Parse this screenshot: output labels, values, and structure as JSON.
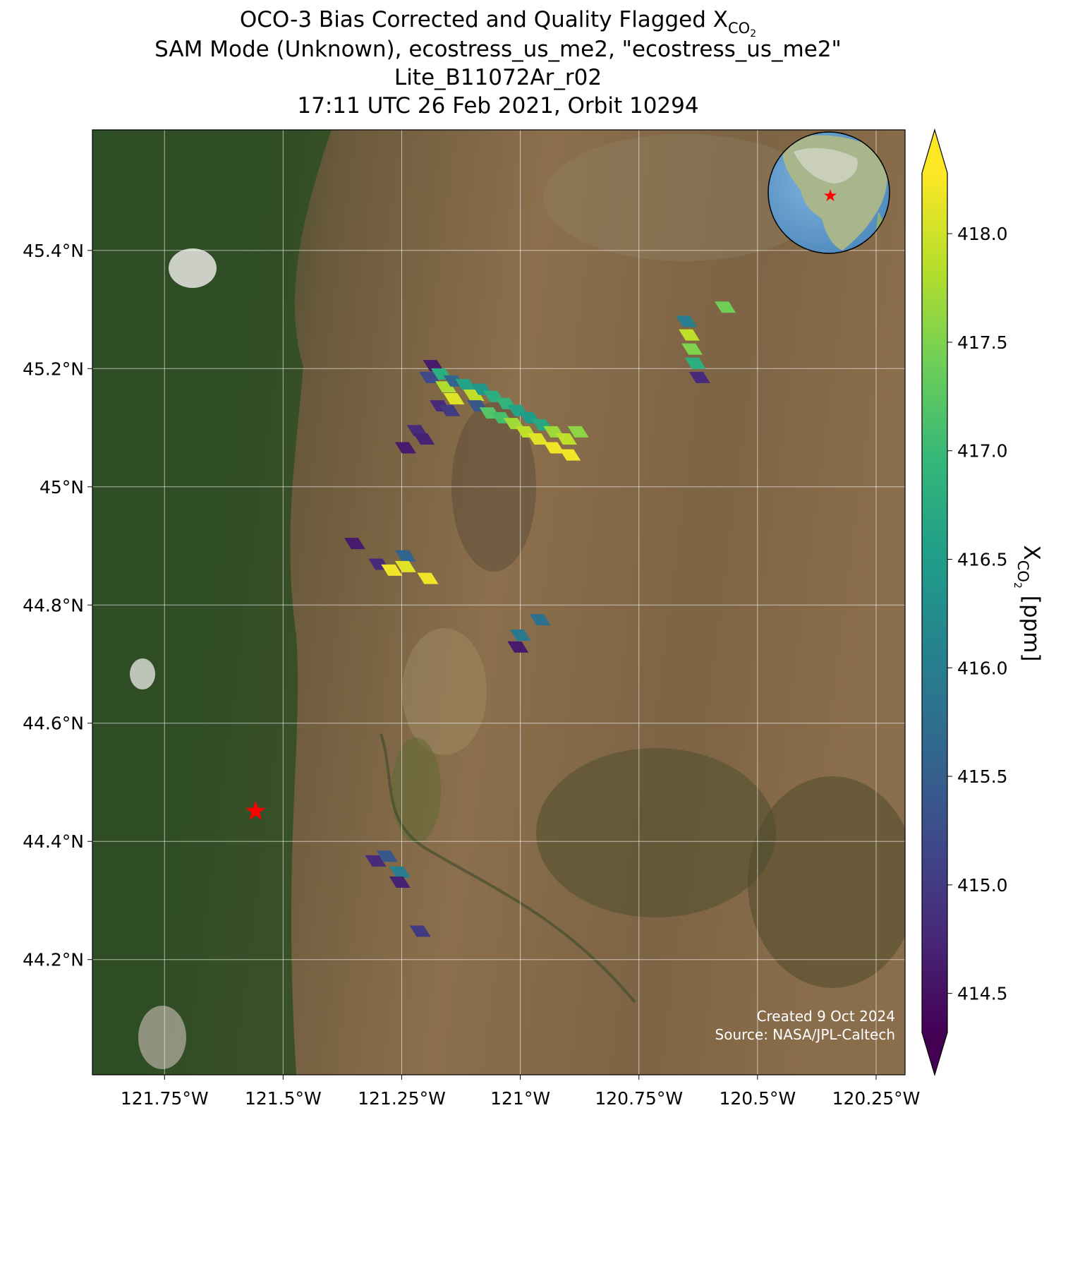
{
  "chart_data": {
    "type": "map",
    "title": {
      "main": "OCO-3 Bias Corrected and Quality Flagged X",
      "sub": "CO",
      "subsub": "2"
    },
    "subtitle": [
      "SAM Mode (Unknown), ecostress_us_me2, \"ecostress_us_me2\"",
      "Lite_B11072Ar_r02",
      "17:11 UTC 26 Feb 2021, Orbit 10294"
    ],
    "xlim": [
      -121.902,
      -120.189
    ],
    "ylim": [
      44.005,
      45.604
    ],
    "xticks": [
      {
        "value": -121.75,
        "label": "121.75°W"
      },
      {
        "value": -121.5,
        "label": "121.5°W"
      },
      {
        "value": -121.25,
        "label": "121.25°W"
      },
      {
        "value": -121,
        "label": "121°W"
      },
      {
        "value": -120.75,
        "label": "120.75°W"
      },
      {
        "value": -120.5,
        "label": "120.5°W"
      },
      {
        "value": -120.25,
        "label": "120.25°W"
      }
    ],
    "yticks": [
      {
        "value": 44.2,
        "label": "44.2°N"
      },
      {
        "value": 44.4,
        "label": "44.4°N"
      },
      {
        "value": 44.6,
        "label": "44.6°N"
      },
      {
        "value": 44.8,
        "label": "44.8°N"
      },
      {
        "value": 45,
        "label": "45°N"
      },
      {
        "value": 45.2,
        "label": "45.2°N"
      },
      {
        "value": 45.4,
        "label": "45.4°N"
      }
    ],
    "grid": true,
    "colormap": "viridis",
    "clim": [
      414.32,
      418.28
    ],
    "colorbar_ticks": [
      414.5,
      {
        "value": 415,
        "label": "415.0"
      },
      415.5,
      {
        "value": 416,
        "label": "416.0"
      },
      416.5,
      {
        "value": 417,
        "label": "417.0"
      },
      417.5,
      {
        "value": 418,
        "label": "418.0"
      }
    ],
    "colorbar_label": {
      "symbol": "X",
      "sub": "CO",
      "subsub": "2",
      "unit": " [ppm]"
    },
    "site": {
      "lon": -121.558,
      "lat": 44.451,
      "color": "#ff0000"
    },
    "soundings": {
      "lon": [
        -121.183,
        -121.191,
        -121.166,
        -121.157,
        -121.14,
        -121.14,
        -121.115,
        -121.098,
        -121.081,
        -121.09,
        -121.056,
        -121.064,
        -121.03,
        -121.039,
        -121.005,
        -121.013,
        -120.98,
        -120.988,
        -120.954,
        -120.963,
        -120.929,
        -120.929,
        -120.903,
        -120.895,
        -120.878,
        -121.169,
        -121.149,
        -121.217,
        -121.203,
        -121.242,
        -121.349,
        -121.298,
        -121.271,
        -121.242,
        -121.242,
        -121.195,
        -120.958,
        -121.0,
        -121.005,
        -120.65,
        -120.644,
        -120.638,
        -120.631,
        -120.622,
        -120.568,
        -121.305,
        -121.281,
        -121.254,
        -121.254,
        -121.211
      ],
      "lat": [
        45.205,
        45.185,
        45.191,
        45.169,
        45.179,
        45.149,
        45.173,
        45.155,
        45.165,
        45.137,
        45.153,
        45.125,
        45.141,
        45.117,
        45.129,
        45.107,
        45.117,
        45.093,
        45.105,
        45.081,
        45.093,
        45.066,
        45.081,
        45.054,
        45.093,
        45.137,
        45.129,
        45.095,
        45.081,
        45.066,
        44.904,
        44.869,
        44.859,
        44.883,
        44.865,
        44.845,
        44.775,
        44.749,
        44.729,
        45.28,
        45.257,
        45.233,
        45.209,
        45.185,
        45.304,
        44.367,
        44.375,
        44.348,
        44.331,
        44.248
      ],
      "values": [
        414.6,
        415.2,
        416.8,
        417.8,
        415.6,
        418.1,
        416.6,
        417.9,
        416.4,
        415.4,
        416.8,
        417.2,
        416.9,
        417.1,
        416.6,
        417.7,
        416.5,
        417.9,
        416.7,
        418.1,
        417.7,
        418.2,
        417.9,
        418.2,
        417.6,
        414.8,
        415.0,
        414.8,
        414.7,
        414.6,
        414.6,
        414.8,
        418.2,
        415.6,
        418.1,
        418.2,
        415.8,
        415.9,
        414.6,
        416.0,
        417.9,
        417.5,
        416.8,
        414.8,
        417.4,
        414.8,
        415.4,
        416.0,
        414.7,
        415.0
      ]
    },
    "footer": [
      "Created 9 Oct 2024",
      "Source: NASA/JPL-Caltech"
    ]
  }
}
